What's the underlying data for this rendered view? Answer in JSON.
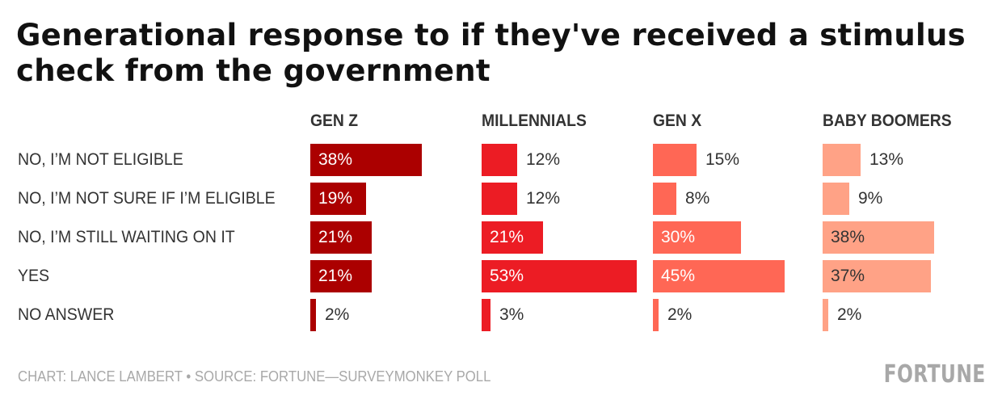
{
  "header": {
    "title": "Generational response to if they've received a stimulus check from the government"
  },
  "footer": {
    "credit": "CHART: LANCE LAMBERT • SOURCE: FORTUNE—SURVEYMONKEY POLL",
    "brand": "FORTUNE"
  },
  "colors": {
    "gen_z": "#ab0000",
    "millennials": "#ec1c24",
    "gen_x": "#ff6755",
    "baby_boomers": "#ffa286",
    "label_light": "#ffffff",
    "label_dark": "#333333"
  },
  "chart_data": {
    "type": "bar",
    "orientation": "horizontal",
    "layout": "small-multiples",
    "title": "Generational response to if they've received a stimulus check from the government",
    "categories": [
      "NO, I’M NOT ELIGIBLE",
      "NO, I’M NOT SURE IF I’M ELIGIBLE",
      "NO, I’M STILL WAITING ON IT",
      "YES",
      "NO ANSWER"
    ],
    "series": [
      {
        "name": "GEN Z",
        "color": "#ab0000",
        "values": [
          38,
          19,
          21,
          21,
          2
        ]
      },
      {
        "name": "MILLENNIALS",
        "color": "#ec1c24",
        "values": [
          12,
          12,
          21,
          53,
          3
        ]
      },
      {
        "name": "GEN X",
        "color": "#ff6755",
        "values": [
          15,
          8,
          30,
          45,
          2
        ]
      },
      {
        "name": "BABY BOOMERS",
        "color": "#ffa286",
        "values": [
          13,
          9,
          38,
          37,
          2
        ]
      }
    ],
    "value_suffix": "%",
    "xlabel": "",
    "ylabel": "",
    "xlim": [
      0,
      100
    ],
    "grid": false,
    "legend": "none"
  }
}
